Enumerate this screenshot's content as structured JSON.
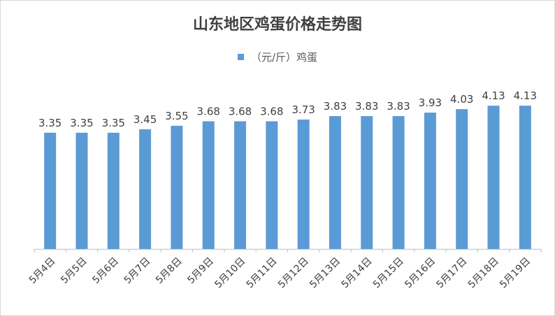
{
  "chart_data": {
    "type": "bar",
    "title": "山东地区鸡蛋价格走势图",
    "series": [
      {
        "name": "（元/斤）鸡蛋",
        "values": [
          3.35,
          3.35,
          3.35,
          3.45,
          3.55,
          3.68,
          3.68,
          3.68,
          3.73,
          3.83,
          3.83,
          3.83,
          3.93,
          4.03,
          4.13,
          4.13
        ]
      }
    ],
    "categories": [
      "5月4日",
      "5月5日",
      "5月6日",
      "5月7日",
      "5月8日",
      "5月9日",
      "5月10日",
      "5月11日",
      "5月12日",
      "5月13日",
      "5月14日",
      "5月15日",
      "5月16日",
      "5月17日",
      "5月18日",
      "5月19日"
    ],
    "data_labels": [
      "3.35",
      "3.35",
      "3.35",
      "3.45",
      "3.55",
      "3.68",
      "3.68",
      "3.68",
      "3.73",
      "3.83",
      "3.83",
      "3.83",
      "3.93",
      "4.03",
      "4.13",
      "4.13"
    ],
    "colors": {
      "bar": "#5b9bd5",
      "axis": "#bfbfbf",
      "text": "#404040"
    },
    "legend_position": "top-center",
    "grid": false
  }
}
